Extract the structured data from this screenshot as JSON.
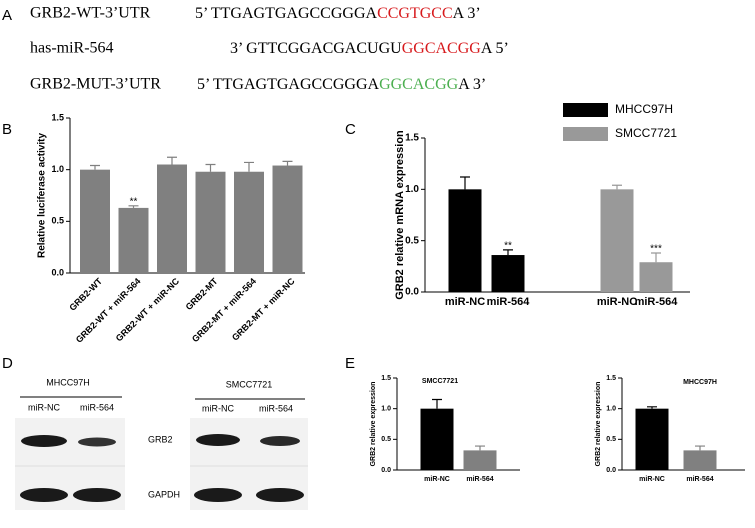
{
  "panel_labels": [
    "A",
    "B",
    "C",
    "D",
    "E"
  ],
  "sequences": [
    {
      "label": "GRB2-WT-3’UTR",
      "parts": [
        "5’ TTGAGTGAGCCGGGA",
        "CCGTGCC",
        "A 3’"
      ],
      "highlight": "#d7191c"
    },
    {
      "label": "has-miR-564",
      "parts": [
        "3’ GTTCGGACGACUGU",
        "GGCACGG",
        "A 5’"
      ],
      "highlight": "#d7191c"
    },
    {
      "label": "GRB2-MUT-3’UTR",
      "parts": [
        "5’ TTGAGTGAGCCGGGA",
        "GGCACGG",
        "A 3’"
      ],
      "highlight": "#4caf50"
    }
  ],
  "blots": [
    {
      "cell_line": "MHCC97H",
      "lanes": [
        "miR-NC",
        "miR-564"
      ]
    },
    {
      "cell_line": "SMCC7721",
      "lanes": [
        "miR-NC",
        "miR-564"
      ]
    }
  ],
  "blot_rows": [
    "GRB2",
    "GAPDH"
  ],
  "chart_data": [
    {
      "type": "bar",
      "ylabel": "Relative luciferase activity",
      "categories": [
        "GRB2-WT",
        "GRB2-WT + miR-564",
        "GRB2-WT + miR-NC",
        "GRB2-MT",
        "GRB2-MT + miR-564",
        "GRB2-MT + miR-NC"
      ],
      "values": [
        1.0,
        0.63,
        1.05,
        0.98,
        0.98,
        1.04
      ],
      "errors": [
        0.04,
        0.02,
        0.07,
        0.07,
        0.09,
        0.04
      ],
      "significance": [
        null,
        "**",
        null,
        null,
        null,
        null
      ],
      "color": "#808080",
      "ylim": [
        0,
        1.5
      ],
      "yticks": [
        {
          "value": 0,
          "label": "0.0"
        },
        0.5,
        {
          "value": 1,
          "label": "1.0"
        },
        1.5
      ]
    },
    {
      "type": "bar",
      "ylabel": "GRB2 relative mRNA expression",
      "categories": [
        "miR-NC",
        "miR-564",
        "miR-NC",
        "miR-564"
      ],
      "series": [
        {
          "name": "MHCC97H",
          "color": "#000000",
          "values": [
            1.0,
            0.36,
            null,
            null
          ],
          "errors": [
            0.12,
            0.05,
            null,
            null
          ]
        },
        {
          "name": "SMCC7721",
          "color": "#999999",
          "values": [
            null,
            null,
            1.0,
            0.29
          ],
          "errors": [
            null,
            null,
            0.04,
            0.09
          ]
        }
      ],
      "significance": [
        null,
        "**",
        null,
        "***"
      ],
      "ylim": [
        0,
        1.5
      ],
      "yticks": [
        {
          "value": 0,
          "label": "0.0"
        },
        0.5,
        {
          "value": 1,
          "label": "1.0"
        },
        1.5
      ]
    },
    {
      "type": "bar",
      "title": "SMCC7721",
      "ylabel": "GRB2 relative expression",
      "categories": [
        "miR-NC",
        "miR-564"
      ],
      "values": [
        1.0,
        0.32
      ],
      "errors": [
        0.15,
        0.07
      ],
      "colors": [
        "#000000",
        "#808080"
      ],
      "ylim": [
        0,
        1.5
      ],
      "yticks": [
        {
          "value": 0,
          "label": "0.0"
        },
        0.5,
        {
          "value": 1,
          "label": "1.0"
        },
        1.5
      ]
    },
    {
      "type": "bar",
      "title": "MHCC97H",
      "ylabel": "GRB2 relative expression",
      "categories": [
        "miR-NC",
        "miR-564"
      ],
      "values": [
        1.0,
        0.32
      ],
      "errors": [
        0.03,
        0.07
      ],
      "colors": [
        "#000000",
        "#808080"
      ],
      "ylim": [
        0,
        1.5
      ],
      "yticks": [
        {
          "value": 0,
          "label": "0.0"
        },
        0.5,
        {
          "value": 1,
          "label": "1.0"
        },
        1.5
      ]
    }
  ]
}
